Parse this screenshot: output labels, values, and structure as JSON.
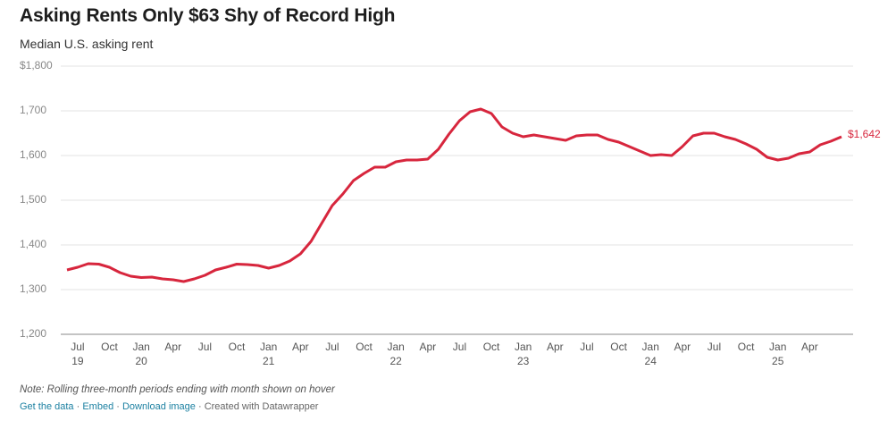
{
  "chart_data": {
    "type": "line",
    "title": "Asking Rents Only $63 Shy of Record High",
    "subtitle": "Median U.S. asking rent",
    "note": "Note: Rolling three-month periods ending with month shown on hover",
    "footer": [
      "Get the data",
      "Embed",
      "Download image",
      "Created with Datawrapper"
    ],
    "categories": [
      null,
      "Jul\n19",
      null,
      null,
      "Oct",
      null,
      null,
      "Jan\n20",
      null,
      null,
      "Apr",
      null,
      null,
      "Jul",
      null,
      null,
      "Oct",
      null,
      null,
      "Jan\n21",
      null,
      null,
      "Apr",
      null,
      null,
      "Jul",
      null,
      null,
      "Oct",
      null,
      null,
      "Jan\n22",
      null,
      null,
      "Apr",
      null,
      null,
      "Jul",
      null,
      null,
      "Oct",
      null,
      null,
      "Jan\n23",
      null,
      null,
      "Apr",
      null,
      null,
      "Jul",
      null,
      null,
      "Oct",
      null,
      null,
      "Jan\n24",
      null,
      null,
      "Apr",
      null,
      null,
      "Jul",
      null,
      null,
      "Oct",
      null,
      null,
      "Jan\n25",
      null,
      null,
      "Apr",
      null,
      null,
      null
    ],
    "series": [
      {
        "name": "Median U.S. asking rent",
        "color": "#d7263d",
        "values": [
          1344,
          1350,
          1358,
          1357,
          1350,
          1338,
          1330,
          1327,
          1328,
          1324,
          1322,
          1318,
          1324,
          1332,
          1344,
          1350,
          1357,
          1356,
          1354,
          1348,
          1354,
          1364,
          1380,
          1408,
          1448,
          1488,
          1514,
          1544,
          1560,
          1574,
          1574,
          1586,
          1590,
          1590,
          1592,
          1614,
          1648,
          1678,
          1698,
          1704,
          1694,
          1664,
          1650,
          1642,
          1646,
          1642,
          1638,
          1634,
          1644,
          1646,
          1646,
          1636,
          1630,
          1620,
          1610,
          1600,
          1602,
          1600,
          1620,
          1644,
          1650,
          1650,
          1642,
          1636,
          1626,
          1614,
          1596,
          1590,
          1594,
          1604,
          1608,
          1624,
          1632,
          1642
        ],
        "end_label": "$1,642"
      }
    ],
    "ylim": [
      1200,
      1800
    ],
    "yticks": [
      {
        "value": 1200,
        "label": "1,200"
      },
      {
        "value": 1300,
        "label": "1,300"
      },
      {
        "value": 1400,
        "label": "1,400"
      },
      {
        "value": 1500,
        "label": "1,500"
      },
      {
        "value": 1600,
        "label": "1,600"
      },
      {
        "value": 1700,
        "label": "1,700"
      },
      {
        "value": 1800,
        "label": "$1,800"
      }
    ],
    "grid": true
  }
}
